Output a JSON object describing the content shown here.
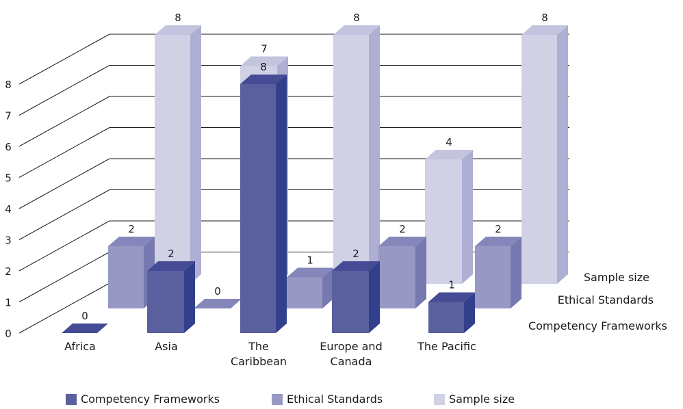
{
  "chart_data": {
    "type": "bar",
    "variant": "3d-clustered-depth",
    "categories": [
      "Africa",
      "Asia",
      "The Caribbean",
      "Europe and Canada",
      "The Pacific"
    ],
    "category_lines": [
      [
        "Africa"
      ],
      [
        "Asia"
      ],
      [
        "The",
        "Caribbean"
      ],
      [
        "Europe and",
        "Canada"
      ],
      [
        "The Pacific"
      ]
    ],
    "series": [
      {
        "name": "Competency Frameworks",
        "values": [
          0,
          2,
          8,
          2,
          1
        ],
        "color": "#5a5f9e",
        "side": "#323f8b",
        "top": "#454b94"
      },
      {
        "name": "Ethical Standards",
        "values": [
          2,
          0,
          1,
          2,
          2
        ],
        "color": "#9799c4",
        "side": "#7678b0",
        "top": "#8586ba"
      },
      {
        "name": "Sample size",
        "values": [
          8,
          7,
          8,
          4,
          8
        ],
        "color": "#d0d1e5",
        "side": "#aeafd2",
        "top": "#c3c4de"
      }
    ],
    "ylim": [
      0,
      8
    ],
    "yticks": [
      0,
      1,
      2,
      3,
      4,
      5,
      6,
      7,
      8
    ],
    "grid": true,
    "legend_position": "bottom",
    "title": "",
    "xlabel": "",
    "ylabel": ""
  }
}
